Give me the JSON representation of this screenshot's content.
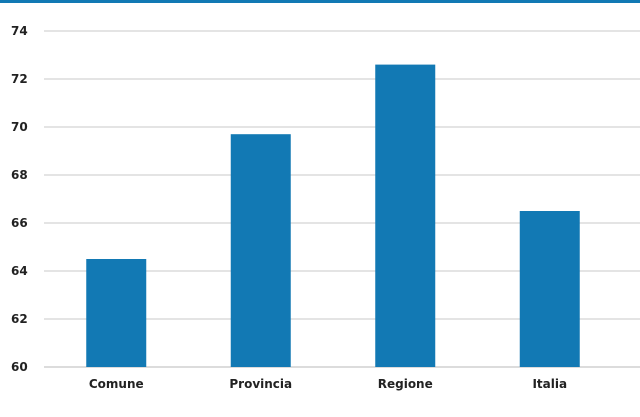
{
  "colors": {
    "accent": "#1279b4",
    "bar": "#1279b4",
    "grid": "#c8c8c8",
    "text": "#222222"
  },
  "chart_data": {
    "type": "bar",
    "categories": [
      "Comune",
      "Provincia",
      "Regione",
      "Italia"
    ],
    "values": [
      64.5,
      69.7,
      72.6,
      66.5
    ],
    "ylim": [
      60,
      75
    ],
    "yticks": [
      60,
      62,
      64,
      66,
      68,
      70,
      72,
      74
    ],
    "grid": true,
    "legend": "none"
  }
}
